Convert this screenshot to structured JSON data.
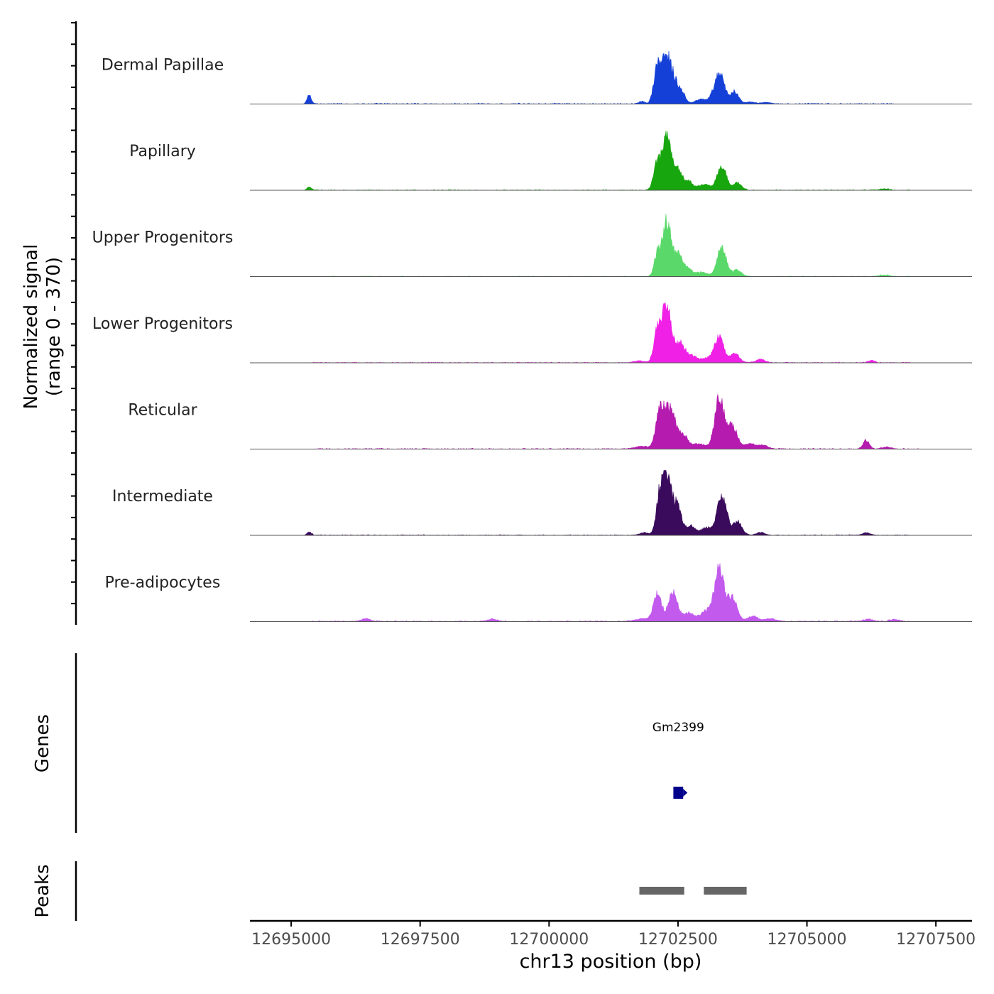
{
  "chart_data": {
    "type": "area",
    "chromosome": "chr13",
    "xlabel": "chr13 position (bp)",
    "xlim": [
      12694200,
      12708200
    ],
    "x_ticks": [
      12695000,
      12697500,
      12700000,
      12702500,
      12705000,
      12707500
    ],
    "x_tick_labels": [
      "12695000",
      "12697500",
      "12700000",
      "12702500",
      "12705000",
      "12707500"
    ],
    "ylabel_line1": "Normalized signal",
    "ylabel_line2": "(range 0 - 370)",
    "ylim": [
      0,
      370
    ],
    "tracks": [
      {
        "name": "Dermal Papillae",
        "color": "#1440D8",
        "peaks": [
          {
            "pos": 12695350,
            "height": 60,
            "width": 40
          },
          {
            "pos": 12701800,
            "height": 18,
            "width": 60
          },
          {
            "pos": 12702100,
            "height": 230,
            "width": 70
          },
          {
            "pos": 12702280,
            "height": 300,
            "width": 90
          },
          {
            "pos": 12702450,
            "height": 120,
            "width": 80
          },
          {
            "pos": 12702600,
            "height": 55,
            "width": 60
          },
          {
            "pos": 12702950,
            "height": 30,
            "width": 120
          },
          {
            "pos": 12703300,
            "height": 200,
            "width": 100
          },
          {
            "pos": 12703600,
            "height": 80,
            "width": 80
          },
          {
            "pos": 12703900,
            "height": 14,
            "width": 80
          },
          {
            "pos": 12704200,
            "height": 12,
            "width": 80
          }
        ],
        "noise": {
          "start": 12695400,
          "end": 12706700,
          "level": 6
        }
      },
      {
        "name": "Papillary",
        "color": "#17A60D",
        "peaks": [
          {
            "pos": 12695350,
            "height": 22,
            "width": 40
          },
          {
            "pos": 12702100,
            "height": 180,
            "width": 70
          },
          {
            "pos": 12702280,
            "height": 330,
            "width": 80
          },
          {
            "pos": 12702480,
            "height": 140,
            "width": 90
          },
          {
            "pos": 12702700,
            "height": 60,
            "width": 80
          },
          {
            "pos": 12703000,
            "height": 40,
            "width": 110
          },
          {
            "pos": 12703350,
            "height": 160,
            "width": 90
          },
          {
            "pos": 12703650,
            "height": 50,
            "width": 80
          },
          {
            "pos": 12706500,
            "height": 10,
            "width": 80
          }
        ],
        "noise": {
          "start": 12695400,
          "end": 12707000,
          "level": 5
        }
      },
      {
        "name": "Upper Progenitors",
        "color": "#5AD96A",
        "peaks": [
          {
            "pos": 12702100,
            "height": 150,
            "width": 60
          },
          {
            "pos": 12702280,
            "height": 360,
            "width": 80
          },
          {
            "pos": 12702500,
            "height": 150,
            "width": 90
          },
          {
            "pos": 12702700,
            "height": 45,
            "width": 70
          },
          {
            "pos": 12702950,
            "height": 30,
            "width": 120
          },
          {
            "pos": 12703350,
            "height": 190,
            "width": 90
          },
          {
            "pos": 12703650,
            "height": 45,
            "width": 80
          },
          {
            "pos": 12706500,
            "height": 10,
            "width": 90
          }
        ],
        "noise": {
          "start": 12695400,
          "end": 12707000,
          "level": 4
        }
      },
      {
        "name": "Lower Progenitors",
        "color": "#F020E6",
        "peaks": [
          {
            "pos": 12701750,
            "height": 14,
            "width": 80
          },
          {
            "pos": 12702100,
            "height": 200,
            "width": 70
          },
          {
            "pos": 12702280,
            "height": 370,
            "width": 90
          },
          {
            "pos": 12702550,
            "height": 130,
            "width": 100
          },
          {
            "pos": 12702800,
            "height": 40,
            "width": 80
          },
          {
            "pos": 12703050,
            "height": 30,
            "width": 110
          },
          {
            "pos": 12703300,
            "height": 170,
            "width": 90
          },
          {
            "pos": 12703600,
            "height": 60,
            "width": 90
          },
          {
            "pos": 12704100,
            "height": 24,
            "width": 80
          },
          {
            "pos": 12706250,
            "height": 16,
            "width": 60
          }
        ],
        "noise": {
          "start": 12695400,
          "end": 12707000,
          "level": 5
        }
      },
      {
        "name": "Reticular",
        "color": "#B41BAE",
        "peaks": [
          {
            "pos": 12701800,
            "height": 20,
            "width": 120
          },
          {
            "pos": 12702150,
            "height": 250,
            "width": 80
          },
          {
            "pos": 12702350,
            "height": 260,
            "width": 100
          },
          {
            "pos": 12702600,
            "height": 90,
            "width": 90
          },
          {
            "pos": 12702900,
            "height": 35,
            "width": 140
          },
          {
            "pos": 12703300,
            "height": 330,
            "width": 90
          },
          {
            "pos": 12703550,
            "height": 150,
            "width": 100
          },
          {
            "pos": 12703900,
            "height": 35,
            "width": 100
          },
          {
            "pos": 12704150,
            "height": 25,
            "width": 90
          },
          {
            "pos": 12706150,
            "height": 60,
            "width": 60
          },
          {
            "pos": 12706550,
            "height": 14,
            "width": 80
          }
        ],
        "noise": {
          "start": 12695400,
          "end": 12707200,
          "level": 6
        }
      },
      {
        "name": "Intermediate",
        "color": "#3A0A5C",
        "peaks": [
          {
            "pos": 12695350,
            "height": 22,
            "width": 40
          },
          {
            "pos": 12701850,
            "height": 18,
            "width": 90
          },
          {
            "pos": 12702150,
            "height": 250,
            "width": 70
          },
          {
            "pos": 12702280,
            "height": 370,
            "width": 80
          },
          {
            "pos": 12702480,
            "height": 200,
            "width": 90
          },
          {
            "pos": 12702750,
            "height": 60,
            "width": 80
          },
          {
            "pos": 12703050,
            "height": 50,
            "width": 110
          },
          {
            "pos": 12703350,
            "height": 270,
            "width": 90
          },
          {
            "pos": 12703650,
            "height": 90,
            "width": 90
          },
          {
            "pos": 12704100,
            "height": 20,
            "width": 80
          },
          {
            "pos": 12706150,
            "height": 18,
            "width": 70
          }
        ],
        "noise": {
          "start": 12695400,
          "end": 12707000,
          "level": 5
        }
      },
      {
        "name": "Pre-adipocytes",
        "color": "#C25AEE",
        "peaks": [
          {
            "pos": 12696450,
            "height": 22,
            "width": 80
          },
          {
            "pos": 12698900,
            "height": 18,
            "width": 80
          },
          {
            "pos": 12701800,
            "height": 20,
            "width": 120
          },
          {
            "pos": 12702100,
            "height": 180,
            "width": 80
          },
          {
            "pos": 12702400,
            "height": 190,
            "width": 90
          },
          {
            "pos": 12702700,
            "height": 60,
            "width": 100
          },
          {
            "pos": 12703050,
            "height": 70,
            "width": 120
          },
          {
            "pos": 12703300,
            "height": 340,
            "width": 90
          },
          {
            "pos": 12703550,
            "height": 160,
            "width": 90
          },
          {
            "pos": 12703950,
            "height": 35,
            "width": 110
          },
          {
            "pos": 12704300,
            "height": 20,
            "width": 100
          },
          {
            "pos": 12706200,
            "height": 18,
            "width": 80
          },
          {
            "pos": 12706700,
            "height": 16,
            "width": 80
          }
        ],
        "noise": {
          "start": 12695400,
          "end": 12707000,
          "level": 7
        }
      }
    ],
    "genes": {
      "label": "Genes",
      "items": [
        {
          "name": "Gm2399",
          "start": 12702410,
          "end": 12702600,
          "strand": "+",
          "color": "#00008B"
        }
      ]
    },
    "peaks_track": {
      "label": "Peaks",
      "color": "#666666",
      "regions": [
        {
          "start": 12701750,
          "end": 12702620
        },
        {
          "start": 12703000,
          "end": 12703830
        }
      ]
    }
  }
}
